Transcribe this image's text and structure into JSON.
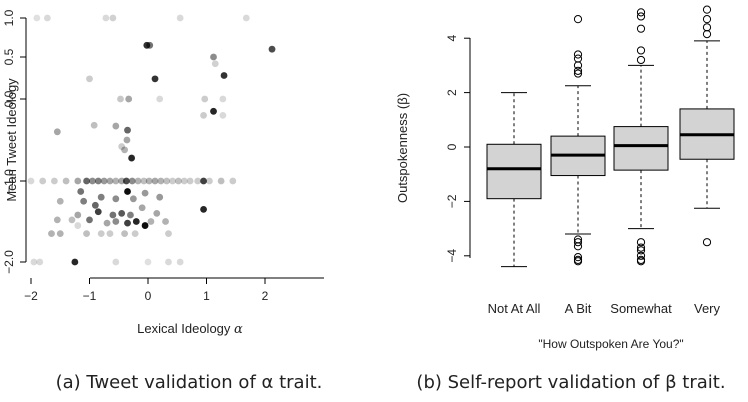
{
  "chart_data": [
    {
      "type": "scatter",
      "xlabel": "Lexical Ideology",
      "xlabel_symbol": "α",
      "ylabel": "Mean Tweet Ideology",
      "xlim": [
        -2.15,
        2.2
      ],
      "ylim": [
        -2.0,
        1.0
      ],
      "y_scale": "nonlinear (spacing widens toward bottom)",
      "x_ticks": [
        "−2",
        "−1",
        "0",
        "1",
        "2"
      ],
      "y_ticks": [
        "1.0",
        "0.5",
        "0.0",
        "−1.0",
        "−2.0"
      ],
      "caption": "(a) Tweet validation of α trait.",
      "points": [
        [
          -1.9,
          1.0,
          0.12
        ],
        [
          -1.72,
          1.0,
          0.15
        ],
        [
          -0.72,
          1.0,
          0.15
        ],
        [
          -0.6,
          1.0,
          0.18
        ],
        [
          0.55,
          1.0,
          0.15
        ],
        [
          1.68,
          1.0,
          0.15
        ],
        [
          -0.02,
          0.65,
          0.8
        ],
        [
          0.03,
          0.65,
          0.55
        ],
        [
          2.12,
          0.6,
          0.7
        ],
        [
          1.12,
          0.5,
          0.45
        ],
        [
          1.3,
          0.28,
          0.8
        ],
        [
          0.12,
          0.24,
          0.8
        ],
        [
          1.15,
          0.42,
          0.18
        ],
        [
          -1.0,
          0.24,
          0.2
        ],
        [
          -0.47,
          0.0,
          0.22
        ],
        [
          -0.33,
          0.0,
          0.35
        ],
        [
          0.2,
          0.0,
          0.15
        ],
        [
          0.97,
          0.0,
          0.2
        ],
        [
          1.28,
          0.0,
          0.15
        ],
        [
          1.12,
          -0.15,
          0.85
        ],
        [
          0.95,
          -0.2,
          0.2
        ],
        [
          1.28,
          -0.2,
          0.15
        ],
        [
          -1.55,
          -0.4,
          0.35
        ],
        [
          -0.35,
          -0.38,
          0.6
        ],
        [
          -0.55,
          -0.33,
          0.35
        ],
        [
          -0.92,
          -0.32,
          0.25
        ],
        [
          -0.36,
          -0.5,
          0.35
        ],
        [
          -0.45,
          -0.58,
          0.2
        ],
        [
          -0.4,
          -0.62,
          0.3
        ],
        [
          -0.28,
          -0.72,
          0.85
        ],
        [
          -2.0,
          -1.0,
          0.15
        ],
        [
          -1.8,
          -1.0,
          0.2
        ],
        [
          -1.6,
          -1.0,
          0.2
        ],
        [
          -1.4,
          -1.0,
          0.25
        ],
        [
          -1.2,
          -1.0,
          0.35
        ],
        [
          -1.05,
          -1.0,
          0.6
        ],
        [
          -0.95,
          -1.0,
          0.45
        ],
        [
          -0.85,
          -1.0,
          0.5
        ],
        [
          -0.75,
          -1.0,
          0.4
        ],
        [
          -0.65,
          -1.0,
          0.35
        ],
        [
          -0.55,
          -1.0,
          0.3
        ],
        [
          -0.45,
          -1.0,
          0.35
        ],
        [
          -0.37,
          -1.0,
          0.7
        ],
        [
          -0.27,
          -1.0,
          0.45
        ],
        [
          -0.17,
          -1.0,
          0.3
        ],
        [
          -0.07,
          -1.0,
          0.25
        ],
        [
          0.02,
          -1.0,
          0.3
        ],
        [
          0.12,
          -1.0,
          0.35
        ],
        [
          0.22,
          -1.0,
          0.3
        ],
        [
          0.32,
          -1.0,
          0.25
        ],
        [
          0.42,
          -1.0,
          0.2
        ],
        [
          0.52,
          -1.0,
          0.25
        ],
        [
          0.62,
          -1.0,
          0.2
        ],
        [
          0.72,
          -1.0,
          0.2
        ],
        [
          0.85,
          -1.0,
          0.2
        ],
        [
          0.95,
          -1.0,
          0.75
        ],
        [
          1.05,
          -1.0,
          0.2
        ],
        [
          1.25,
          -1.0,
          0.25
        ],
        [
          1.45,
          -1.0,
          0.2
        ],
        [
          -0.35,
          -1.13,
          0.95
        ],
        [
          -1.15,
          -1.13,
          0.55
        ],
        [
          -0.05,
          -1.15,
          0.4
        ],
        [
          -1.1,
          -1.25,
          0.5
        ],
        [
          -0.8,
          -1.2,
          0.5
        ],
        [
          -0.55,
          -1.22,
          0.45
        ],
        [
          -0.25,
          -1.22,
          0.4
        ],
        [
          0.2,
          -1.2,
          0.4
        ],
        [
          -1.5,
          -1.25,
          0.3
        ],
        [
          -0.9,
          -1.3,
          0.6
        ],
        [
          0.95,
          -1.35,
          0.85
        ],
        [
          -0.1,
          -1.33,
          0.35
        ],
        [
          -1.2,
          -1.42,
          0.35
        ],
        [
          -0.85,
          -1.38,
          0.75
        ],
        [
          -0.6,
          -1.42,
          0.55
        ],
        [
          -0.45,
          -1.4,
          0.65
        ],
        [
          -0.3,
          -1.42,
          0.5
        ],
        [
          0.15,
          -1.4,
          0.35
        ],
        [
          -1.55,
          -1.48,
          0.3
        ],
        [
          -1.3,
          -1.48,
          0.25
        ],
        [
          -1.0,
          -1.48,
          0.55
        ],
        [
          -0.7,
          -1.52,
          0.35
        ],
        [
          -0.55,
          -1.5,
          0.45
        ],
        [
          -0.35,
          -1.52,
          0.75
        ],
        [
          -0.2,
          -1.5,
          0.85
        ],
        [
          -0.05,
          -1.55,
          0.95
        ],
        [
          0.05,
          -1.5,
          0.3
        ],
        [
          0.3,
          -1.5,
          0.3
        ],
        [
          -1.2,
          -1.55,
          0.15
        ],
        [
          -1.65,
          -1.65,
          0.3
        ],
        [
          -1.5,
          -1.65,
          0.3
        ],
        [
          -1.05,
          -1.65,
          0.25
        ],
        [
          -0.8,
          -1.65,
          0.2
        ],
        [
          -0.65,
          -1.65,
          0.2
        ],
        [
          -0.4,
          -1.65,
          0.25
        ],
        [
          -0.22,
          -1.65,
          0.2
        ],
        [
          0.35,
          -1.65,
          0.2
        ],
        [
          -1.95,
          -2.0,
          0.15
        ],
        [
          -1.85,
          -2.0,
          0.15
        ],
        [
          -1.25,
          -2.0,
          0.85
        ],
        [
          -0.55,
          -2.0,
          0.15
        ],
        [
          0.0,
          -2.0,
          0.12
        ],
        [
          0.35,
          -2.0,
          0.15
        ],
        [
          0.55,
          -2.0,
          0.15
        ]
      ]
    },
    {
      "type": "box",
      "ylabel": "Outspokenness (β)",
      "xlabel": "\"How Outspoken Are You?\"",
      "ylim": [
        -4.6,
        5.2
      ],
      "y_ticks": [
        "−4",
        "−2",
        "0",
        "2",
        "4"
      ],
      "caption": "(b) Self-report validation of β trait.",
      "categories": [
        "Not At All",
        "A Bit",
        "Somewhat",
        "Very"
      ],
      "boxes": [
        {
          "whisker_low": -4.4,
          "q1": -1.9,
          "median": -0.8,
          "q3": 0.1,
          "whisker_high": 2.0,
          "outliers": []
        },
        {
          "whisker_low": -3.2,
          "q1": -1.05,
          "median": -0.3,
          "q3": 0.4,
          "whisker_high": 2.25,
          "outliers": [
            4.7,
            3.4,
            3.25,
            3.0,
            2.8,
            2.7,
            -3.4,
            -3.5,
            -3.65,
            -4.05,
            -4.15,
            -4.2
          ]
        },
        {
          "whisker_low": -3.0,
          "q1": -0.85,
          "median": 0.05,
          "q3": 0.75,
          "whisker_high": 3.0,
          "outliers": [
            4.95,
            4.8,
            4.35,
            3.55,
            3.2,
            -3.5,
            -3.7,
            -3.8,
            -4.0,
            -4.15,
            -4.2
          ]
        },
        {
          "whisker_low": -2.25,
          "q1": -0.45,
          "median": 0.45,
          "q3": 1.4,
          "whisker_high": 3.9,
          "outliers": [
            5.05,
            4.7,
            4.4,
            4.15,
            -3.5
          ]
        }
      ]
    }
  ]
}
